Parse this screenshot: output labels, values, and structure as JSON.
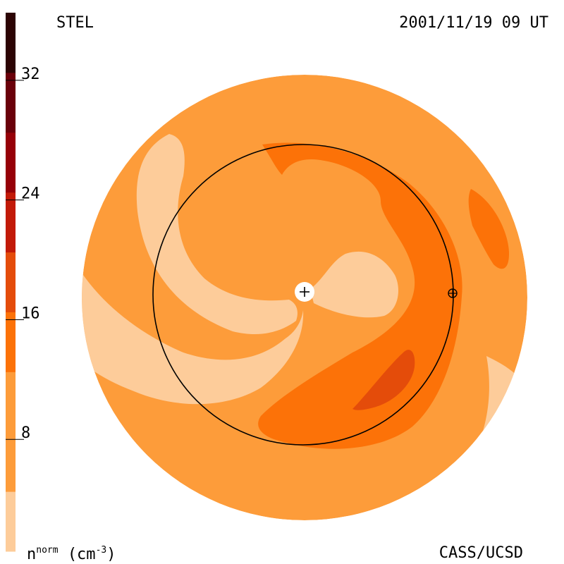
{
  "header": {
    "observatory": "STEL",
    "timestamp": "2001/11/19 09 UT"
  },
  "footer": {
    "credit": "CASS/UCSD",
    "quantity": "n",
    "quantity_superscript": "norm",
    "unit_open": "(cm",
    "unit_exponent": "-3",
    "unit_close": ")"
  },
  "chart_data": {
    "type": "heatmap",
    "title": "",
    "colorbar": {
      "range": [
        0,
        36
      ],
      "ticks": [
        8,
        16,
        24,
        32
      ],
      "tick_labels": [
        "8",
        "16",
        "24",
        "32"
      ],
      "levels": [
        {
          "from": 0,
          "to": 4,
          "color": "#fdcc9a"
        },
        {
          "from": 4,
          "to": 12,
          "color": "#fd9c3a"
        },
        {
          "from": 12,
          "to": 16,
          "color": "#fc7208"
        },
        {
          "from": 16,
          "to": 20,
          "color": "#e44c0a"
        },
        {
          "from": 20,
          "to": 24,
          "color": "#c21a08"
        },
        {
          "from": 24,
          "to": 28,
          "color": "#960008"
        },
        {
          "from": 28,
          "to": 32,
          "color": "#6a000a"
        },
        {
          "from": 32,
          "to": 36,
          "color": "#2c0404"
        }
      ]
    },
    "markers": [
      {
        "name": "sun",
        "symbol": "plus"
      },
      {
        "name": "earth",
        "symbol": "circle-plus"
      }
    ],
    "earth_orbit": true
  }
}
